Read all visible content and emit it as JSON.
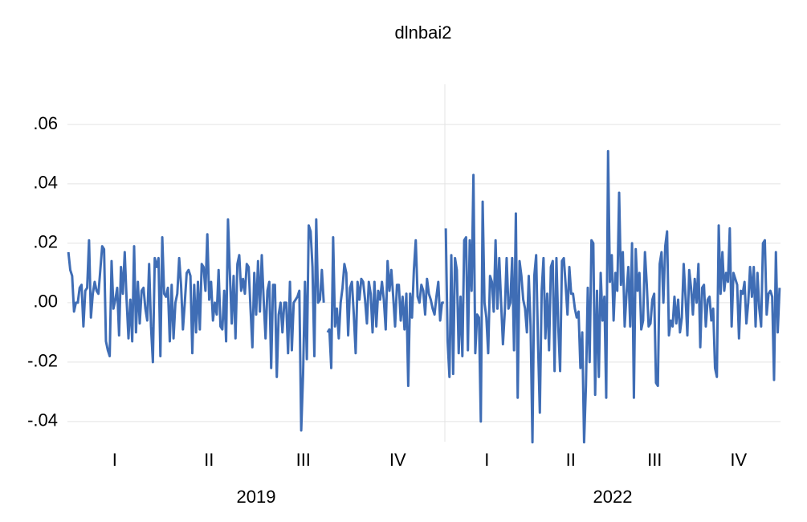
{
  "chart_data": {
    "type": "line",
    "title": "dlnbai2",
    "color": "#3f6db5",
    "grid": true,
    "ylim": [
      -0.0468,
      0.0735
    ],
    "yticks": [
      {
        "value": -0.04,
        "label": "-.04"
      },
      {
        "value": -0.02,
        "label": "-.02"
      },
      {
        "value": 0,
        "label": ".00"
      },
      {
        "value": 0.02,
        "label": ".02"
      },
      {
        "value": 0.04,
        "label": ".04"
      },
      {
        "value": 0.06,
        "label": ".06"
      }
    ],
    "segments": [
      {
        "year": "2019",
        "quarters": [
          "I",
          "II",
          "III",
          "IV"
        ],
        "values": [
          0.017,
          0.011,
          0.009,
          -0.003,
          0.0,
          0.0,
          0.005,
          0.006,
          -0.008,
          0.004,
          0.005,
          0.021,
          -0.005,
          0.003,
          0.007,
          0.004,
          0.003,
          0.011,
          0.019,
          0.018,
          -0.013,
          -0.016,
          -0.018,
          0.014,
          -0.002,
          0.001,
          0.005,
          -0.011,
          0.012,
          0.003,
          0.017,
          0.001,
          -0.012,
          0.001,
          -0.013,
          0.019,
          -0.01,
          0.007,
          -0.007,
          0.004,
          0.005,
          -0.002,
          -0.006,
          0.013,
          -0.008,
          -0.02,
          0.015,
          0.012,
          0.015,
          -0.018,
          0.022,
          0.003,
          0.002,
          0.005,
          -0.013,
          0.006,
          -0.012,
          0.0,
          0.003,
          0.015,
          0.006,
          -0.009,
          0.0,
          0.01,
          0.011,
          0.009,
          -0.017,
          0.006,
          -0.01,
          0.007,
          -0.009,
          0.013,
          0.012,
          0.004,
          0.023,
          0.001,
          0.007,
          -0.006,
          0.0,
          -0.004,
          0.011,
          -0.008,
          -0.009,
          0.004,
          -0.013,
          0.028,
          0.01,
          -0.007,
          0.009,
          -0.012,
          0.013,
          0.016,
          0.004,
          0.008,
          0.003,
          0.013,
          0.012,
          -0.002,
          -0.015,
          0.01,
          -0.004,
          0.014,
          -0.003,
          0.016,
          0.001,
          -0.012,
          0.004,
          0.007,
          -0.022,
          0.006,
          0.006,
          -0.025,
          -0.004,
          0.0,
          -0.01,
          0.0,
          0.0,
          -0.017,
          0.007,
          -0.016,
          0.0,
          0.001,
          0.002,
          0.004,
          -0.043,
          -0.024,
          0.007,
          -0.019,
          0.026,
          0.024,
          0.012,
          -0.018,
          0.028,
          0.0,
          0.001,
          0.011,
          0.0,
          null,
          -0.01,
          -0.009,
          -0.022,
          0.022,
          -0.008,
          -0.002,
          -0.012,
          0.0,
          0.005,
          0.013,
          0.01,
          -0.011,
          0.005,
          0.007,
          -0.004,
          -0.017,
          0.007,
          0.001,
          0.008,
          0.007,
          0.001,
          -0.007,
          0.007,
          0.003,
          -0.01,
          0.007,
          -0.008,
          0.004,
          0.001,
          0.007,
          0.001,
          -0.009,
          0.014,
          0.004,
          0.011,
          0.002,
          -0.008,
          0.006,
          0.006,
          -0.006,
          0.002,
          -0.009,
          0.003,
          -0.028,
          0.003,
          -0.005,
          0.011,
          0.021,
          0.002,
          0.0,
          0.006,
          0.004,
          -0.004,
          0.008,
          0.003,
          0.001,
          -0.002,
          -0.004,
          0.002,
          0.007,
          -0.006,
          0.0,
          0.0
        ]
      },
      {
        "year": "2022",
        "quarters": [
          "I",
          "II",
          "III",
          "IV"
        ],
        "values": [
          0.025,
          -0.013,
          -0.025,
          0.016,
          -0.024,
          0.015,
          0.011,
          -0.017,
          0.002,
          -0.018,
          0.021,
          0.022,
          -0.016,
          0.021,
          0.004,
          0.043,
          -0.017,
          -0.004,
          -0.005,
          -0.04,
          0.034,
          0.0,
          -0.005,
          -0.017,
          0.009,
          0.007,
          -0.003,
          0.021,
          -0.002,
          0.015,
          0.0,
          -0.014,
          -0.003,
          0.015,
          -0.002,
          0.0,
          0.015,
          -0.016,
          0.03,
          -0.032,
          0.014,
          0.009,
          0.001,
          -0.002,
          -0.01,
          0.009,
          -0.008,
          -0.047,
          0.009,
          0.016,
          -0.013,
          -0.037,
          0.004,
          0.015,
          -0.012,
          0.003,
          -0.016,
          0.012,
          0.014,
          -0.023,
          0.015,
          -0.008,
          -0.023,
          0.014,
          0.015,
          0.006,
          -0.004,
          0.012,
          0.003,
          0.003,
          -0.002,
          -0.005,
          -0.003,
          -0.022,
          -0.01,
          -0.047,
          -0.028,
          0.005,
          -0.02,
          0.021,
          0.02,
          -0.031,
          0.004,
          -0.025,
          0.01,
          -0.006,
          0.002,
          -0.032,
          0.051,
          0.007,
          0.016,
          -0.006,
          0.01,
          0.004,
          0.037,
          0.006,
          0.017,
          -0.008,
          0.003,
          0.012,
          -0.008,
          0.02,
          -0.032,
          0.018,
          0.004,
          0.01,
          -0.009,
          -0.006,
          0.017,
          0.006,
          -0.008,
          -0.007,
          0.001,
          0.003,
          -0.027,
          -0.028,
          0.013,
          0.017,
          0.0,
          0.019,
          0.024,
          -0.011,
          -0.006,
          -0.008,
          0.002,
          -0.007,
          0.001,
          -0.01,
          -0.005,
          0.013,
          0.002,
          -0.011,
          0.011,
          0.005,
          -0.004,
          0.008,
          0.0,
          0.013,
          -0.015,
          0.005,
          0.006,
          -0.008,
          0.001,
          0.002,
          -0.006,
          -0.002,
          -0.022,
          -0.025,
          0.026,
          0.003,
          0.017,
          0.004,
          0.01,
          0.007,
          0.025,
          -0.008,
          0.01,
          0.008,
          0.006,
          -0.012,
          0.004,
          0.003,
          0.007,
          -0.007,
          0.0,
          0.012,
          0.002,
          0.012,
          -0.008,
          0.01,
          -0.002,
          -0.008,
          0.02,
          0.021,
          -0.004,
          0.003,
          0.004,
          0.002,
          -0.026,
          0.017,
          -0.01,
          0.005
        ]
      }
    ]
  }
}
